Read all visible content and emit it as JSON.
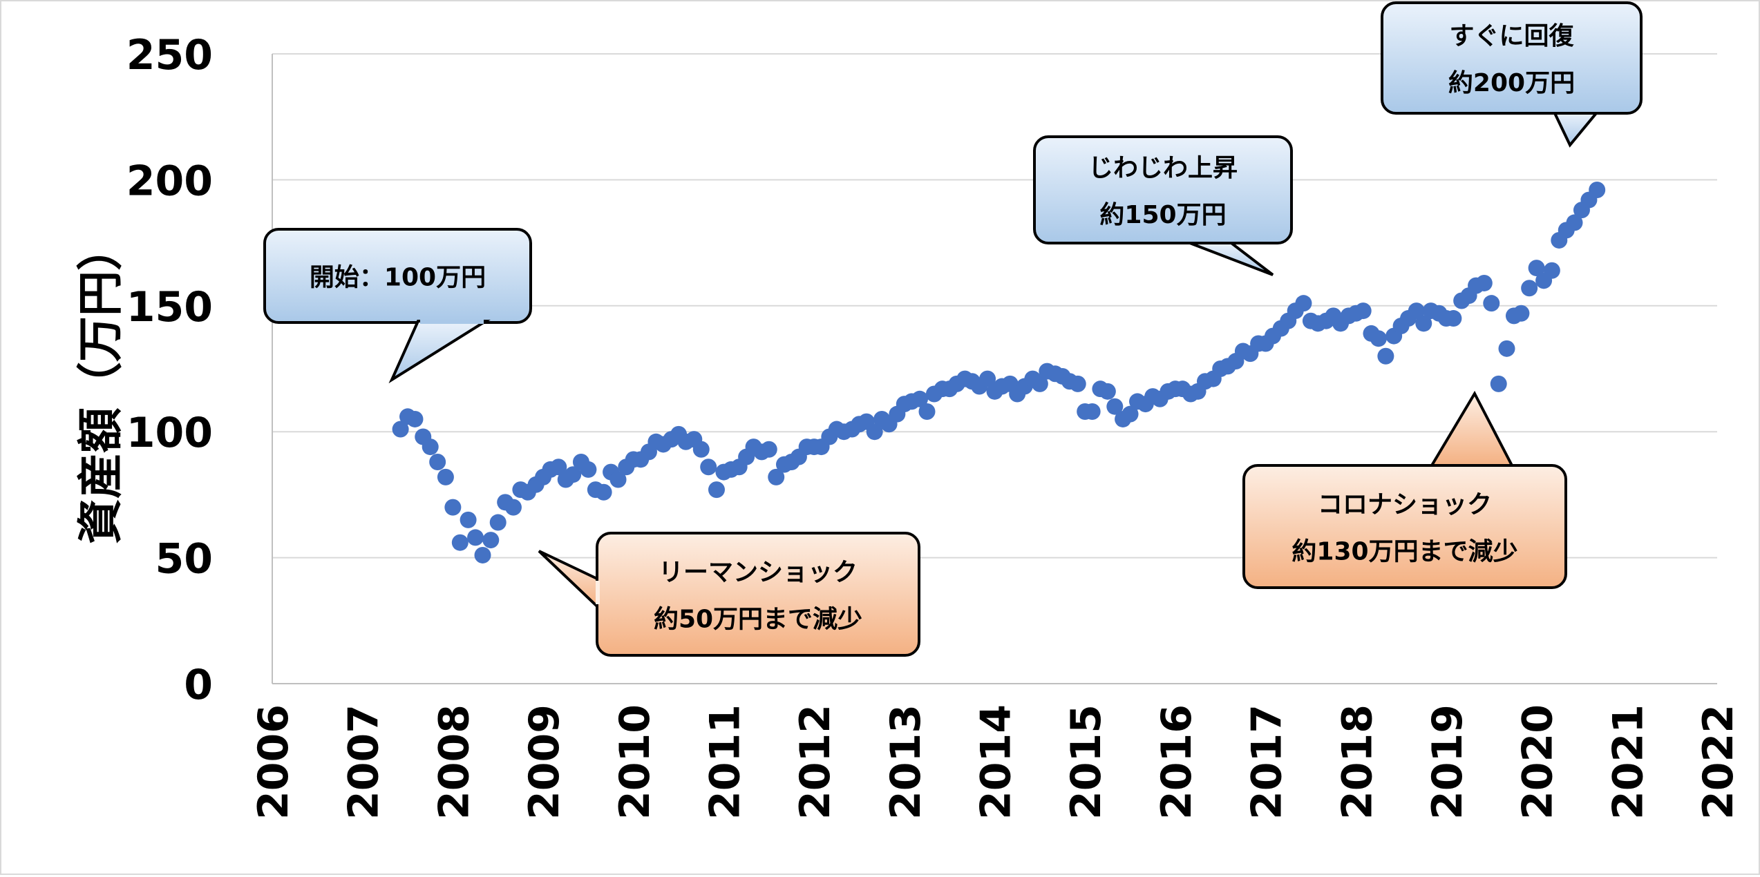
{
  "chart_data": {
    "type": "scatter",
    "ylabel": "資産額（万円）",
    "xlabel": "",
    "xlim": [
      2006,
      2022
    ],
    "ylim": [
      0,
      250
    ],
    "x_ticks": [
      "2006",
      "2007",
      "2008",
      "2009",
      "2010",
      "2011",
      "2012",
      "2013",
      "2014",
      "2015",
      "2016",
      "2017",
      "2018",
      "2019",
      "2020",
      "2021",
      "2022"
    ],
    "y_ticks": [
      "0",
      "50",
      "100",
      "150",
      "200",
      "250"
    ],
    "grid": true,
    "marker_color": "#4472C4",
    "points": [
      [
        2007.42,
        101
      ],
      [
        2007.5,
        106
      ],
      [
        2007.58,
        105
      ],
      [
        2007.67,
        98
      ],
      [
        2007.75,
        94
      ],
      [
        2007.83,
        88
      ],
      [
        2007.92,
        82
      ],
      [
        2008.0,
        70
      ],
      [
        2008.08,
        56
      ],
      [
        2008.17,
        65
      ],
      [
        2008.25,
        58
      ],
      [
        2008.33,
        51
      ],
      [
        2008.42,
        57
      ],
      [
        2008.5,
        64
      ],
      [
        2008.58,
        72
      ],
      [
        2008.67,
        70
      ],
      [
        2008.75,
        77
      ],
      [
        2008.83,
        76
      ],
      [
        2008.92,
        79
      ],
      [
        2009.0,
        82
      ],
      [
        2009.08,
        85
      ],
      [
        2009.17,
        86
      ],
      [
        2009.25,
        81
      ],
      [
        2009.33,
        83
      ],
      [
        2009.42,
        88
      ],
      [
        2009.5,
        85
      ],
      [
        2009.58,
        77
      ],
      [
        2009.67,
        76
      ],
      [
        2009.75,
        84
      ],
      [
        2009.83,
        81
      ],
      [
        2009.92,
        86
      ],
      [
        2010.0,
        89
      ],
      [
        2010.08,
        89
      ],
      [
        2010.17,
        92
      ],
      [
        2010.25,
        96
      ],
      [
        2010.33,
        95
      ],
      [
        2010.42,
        97
      ],
      [
        2010.5,
        99
      ],
      [
        2010.58,
        96
      ],
      [
        2010.67,
        97
      ],
      [
        2010.75,
        93
      ],
      [
        2010.83,
        86
      ],
      [
        2010.92,
        77
      ],
      [
        2011.0,
        84
      ],
      [
        2011.08,
        85
      ],
      [
        2011.17,
        86
      ],
      [
        2011.25,
        90
      ],
      [
        2011.33,
        94
      ],
      [
        2011.42,
        92
      ],
      [
        2011.5,
        93
      ],
      [
        2011.58,
        82
      ],
      [
        2011.67,
        87
      ],
      [
        2011.75,
        88
      ],
      [
        2011.83,
        90
      ],
      [
        2011.92,
        94
      ],
      [
        2012.0,
        94
      ],
      [
        2012.08,
        94
      ],
      [
        2012.17,
        98
      ],
      [
        2012.25,
        101
      ],
      [
        2012.33,
        100
      ],
      [
        2012.42,
        101
      ],
      [
        2012.5,
        103
      ],
      [
        2012.58,
        104
      ],
      [
        2012.67,
        100
      ],
      [
        2012.75,
        105
      ],
      [
        2012.83,
        103
      ],
      [
        2012.92,
        107
      ],
      [
        2013.0,
        111
      ],
      [
        2013.08,
        112
      ],
      [
        2013.17,
        113
      ],
      [
        2013.25,
        108
      ],
      [
        2013.33,
        115
      ],
      [
        2013.42,
        117
      ],
      [
        2013.5,
        117
      ],
      [
        2013.58,
        119
      ],
      [
        2013.67,
        121
      ],
      [
        2013.75,
        120
      ],
      [
        2013.83,
        118
      ],
      [
        2013.92,
        121
      ],
      [
        2014.0,
        116
      ],
      [
        2014.08,
        118
      ],
      [
        2014.17,
        119
      ],
      [
        2014.25,
        115
      ],
      [
        2014.33,
        118
      ],
      [
        2014.42,
        121
      ],
      [
        2014.5,
        119
      ],
      [
        2014.58,
        124
      ],
      [
        2014.67,
        123
      ],
      [
        2014.75,
        122
      ],
      [
        2014.83,
        120
      ],
      [
        2014.92,
        119
      ],
      [
        2015.0,
        108
      ],
      [
        2015.08,
        108
      ],
      [
        2015.17,
        117
      ],
      [
        2015.25,
        116
      ],
      [
        2015.33,
        110
      ],
      [
        2015.42,
        105
      ],
      [
        2015.5,
        107
      ],
      [
        2015.58,
        112
      ],
      [
        2015.67,
        111
      ],
      [
        2015.75,
        114
      ],
      [
        2015.83,
        113
      ],
      [
        2015.92,
        116
      ],
      [
        2016.0,
        117
      ],
      [
        2016.08,
        117
      ],
      [
        2016.17,
        115
      ],
      [
        2016.25,
        116
      ],
      [
        2016.33,
        120
      ],
      [
        2016.42,
        121
      ],
      [
        2016.5,
        125
      ],
      [
        2016.58,
        126
      ],
      [
        2016.67,
        128
      ],
      [
        2016.75,
        132
      ],
      [
        2016.83,
        131
      ],
      [
        2016.92,
        135
      ],
      [
        2017.0,
        135
      ],
      [
        2017.08,
        138
      ],
      [
        2017.17,
        141
      ],
      [
        2017.25,
        144
      ],
      [
        2017.33,
        148
      ],
      [
        2017.42,
        151
      ],
      [
        2017.5,
        144
      ],
      [
        2017.58,
        143
      ],
      [
        2017.67,
        144
      ],
      [
        2017.75,
        146
      ],
      [
        2017.83,
        143
      ],
      [
        2017.92,
        146
      ],
      [
        2018.0,
        147
      ],
      [
        2018.08,
        148
      ],
      [
        2018.17,
        139
      ],
      [
        2018.25,
        137
      ],
      [
        2018.33,
        130
      ],
      [
        2018.42,
        138
      ],
      [
        2018.5,
        142
      ],
      [
        2018.58,
        145
      ],
      [
        2018.67,
        148
      ],
      [
        2018.75,
        143
      ],
      [
        2018.83,
        148
      ],
      [
        2018.92,
        147
      ],
      [
        2019.0,
        145
      ],
      [
        2019.08,
        145
      ],
      [
        2019.17,
        152
      ],
      [
        2019.25,
        154
      ],
      [
        2019.33,
        158
      ],
      [
        2019.42,
        159
      ],
      [
        2019.5,
        151
      ],
      [
        2019.58,
        119
      ],
      [
        2019.67,
        133
      ],
      [
        2019.75,
        146
      ],
      [
        2019.83,
        147
      ],
      [
        2019.92,
        157
      ],
      [
        2020.0,
        165
      ],
      [
        2020.08,
        160
      ],
      [
        2020.17,
        164
      ],
      [
        2020.25,
        176
      ],
      [
        2020.33,
        180
      ],
      [
        2020.42,
        183
      ],
      [
        2020.5,
        188
      ],
      [
        2020.58,
        192
      ],
      [
        2020.67,
        196
      ]
    ],
    "annotations": [
      {
        "lines": [
          "開始：100万円"
        ],
        "style": "blue"
      },
      {
        "lines": [
          "リーマンショック",
          "約50万円まで減少"
        ],
        "style": "orange"
      },
      {
        "lines": [
          "じわじわ上昇",
          "約150万円"
        ],
        "style": "blue"
      },
      {
        "lines": [
          "コロナショック",
          "約130万円まで減少"
        ],
        "style": "orange"
      },
      {
        "lines": [
          "すぐに回復",
          "約200万円"
        ],
        "style": "blue"
      }
    ],
    "callout_colors": {
      "blue_top": "#eaf2fb",
      "blue_bottom": "#a9c8e8",
      "orange_top": "#fdeee3",
      "orange_bottom": "#f4b183"
    }
  }
}
